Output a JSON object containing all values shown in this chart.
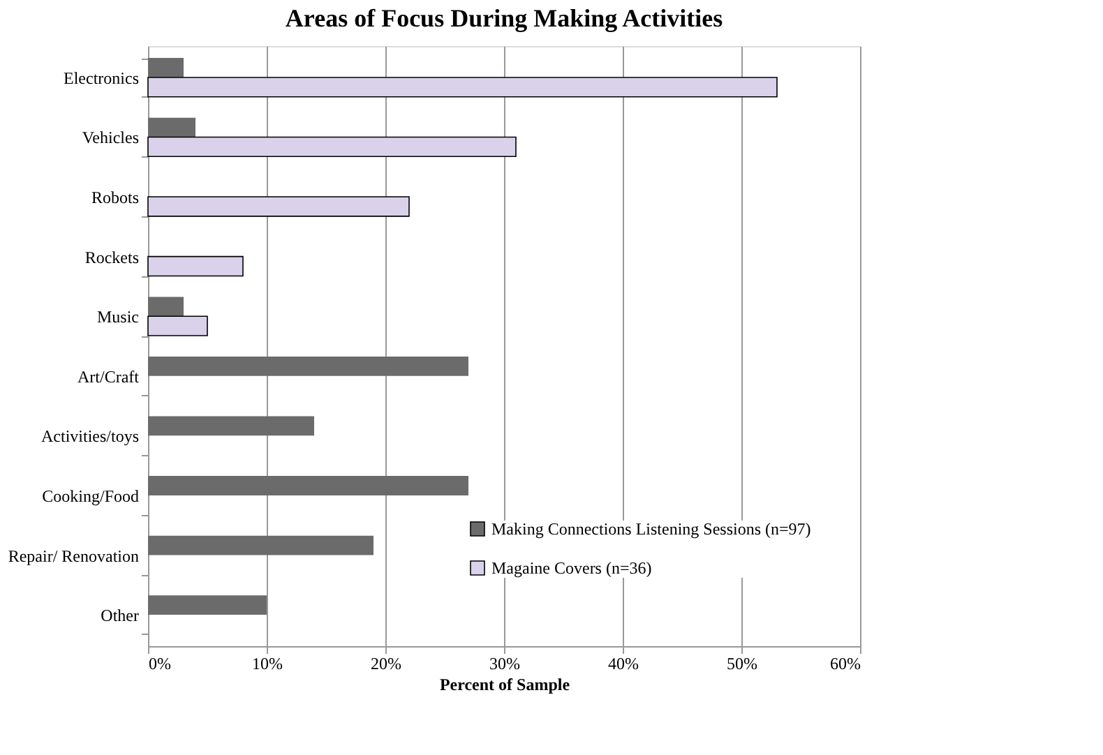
{
  "chart_data": {
    "type": "bar",
    "orientation": "horizontal",
    "title": "Areas of Focus During Making Activities",
    "xlabel": "Percent of Sample",
    "categories": [
      "Electronics",
      "Vehicles",
      "Robots",
      "Rockets",
      "Music",
      "Art/Craft",
      "Activities/toys",
      "Cooking/Food",
      "Repair/ Renovation",
      "Other"
    ],
    "series": [
      {
        "name": "Making Connections Listening Sessions (n=97)",
        "color": "#6b6b6b",
        "values": [
          3,
          4,
          null,
          null,
          3,
          27,
          14,
          27,
          19,
          10
        ]
      },
      {
        "name": "Magaine Covers (n=36)",
        "color": "#d9d2ea",
        "values": [
          53,
          31,
          22,
          8,
          5,
          null,
          null,
          null,
          null,
          null
        ]
      }
    ],
    "xlim": [
      0,
      60
    ],
    "xticks": [
      {
        "value": 0,
        "label": "0%"
      },
      {
        "value": 10,
        "label": "10%"
      },
      {
        "value": 20,
        "label": "20%"
      },
      {
        "value": 30,
        "label": "30%"
      },
      {
        "value": 40,
        "label": "40%"
      },
      {
        "value": 50,
        "label": "50%"
      },
      {
        "value": 60,
        "label": "60%"
      }
    ],
    "grid": "x",
    "legend": "bottom right"
  }
}
